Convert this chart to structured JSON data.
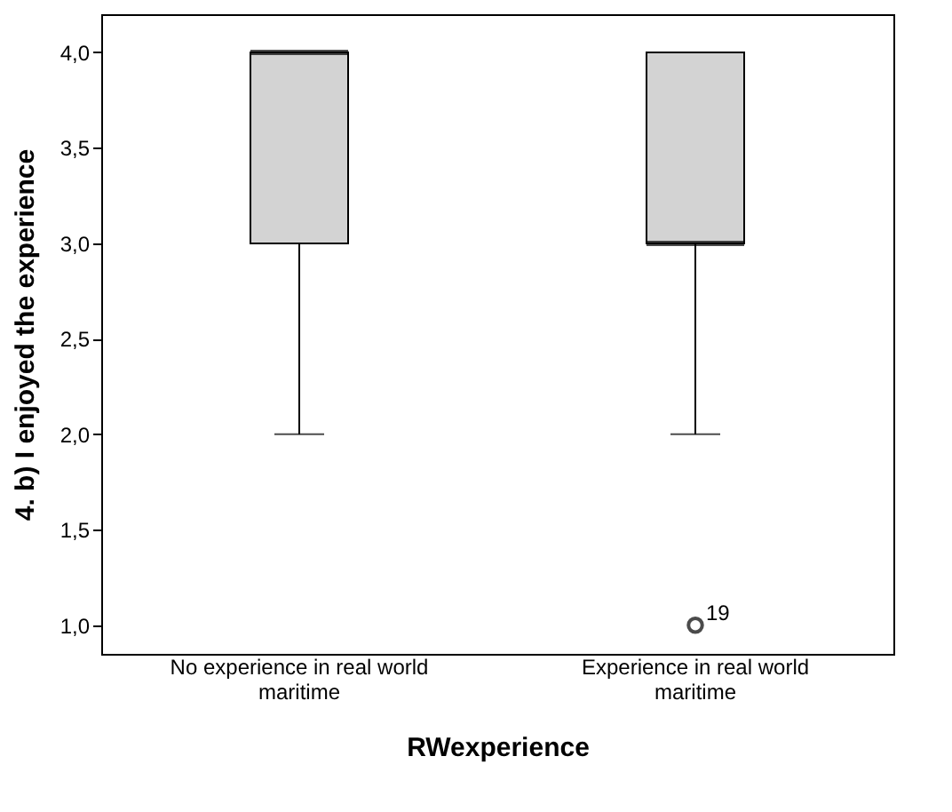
{
  "chart_data": {
    "type": "box",
    "xlabel": "RWexperience",
    "ylabel": "4. b) I enjoyed the experience",
    "categories": [
      "No experience in real world maritime",
      "Experience in real world maritime"
    ],
    "color": "#d3d3d3",
    "boxes": [
      {
        "low": 2,
        "q1": 3,
        "median": 4,
        "q3": 4,
        "high": 4
      },
      {
        "low": 2,
        "q1": 3,
        "median": 3,
        "q3": 4,
        "high": 4,
        "outliers": [
          1
        ]
      }
    ],
    "ylim": [
      0.85,
      4.2
    ],
    "yticks": [
      {
        "value": 1,
        "label": "1,0"
      },
      {
        "value": 1.5,
        "label": "1,5"
      },
      {
        "value": 2,
        "label": "2,0"
      },
      {
        "value": 2.5,
        "label": "2,5"
      },
      {
        "value": 3,
        "label": "3,0"
      },
      {
        "value": 3.5,
        "label": "3,5"
      },
      {
        "value": 4,
        "label": "4,0"
      }
    ],
    "annotations": [
      "19"
    ]
  }
}
